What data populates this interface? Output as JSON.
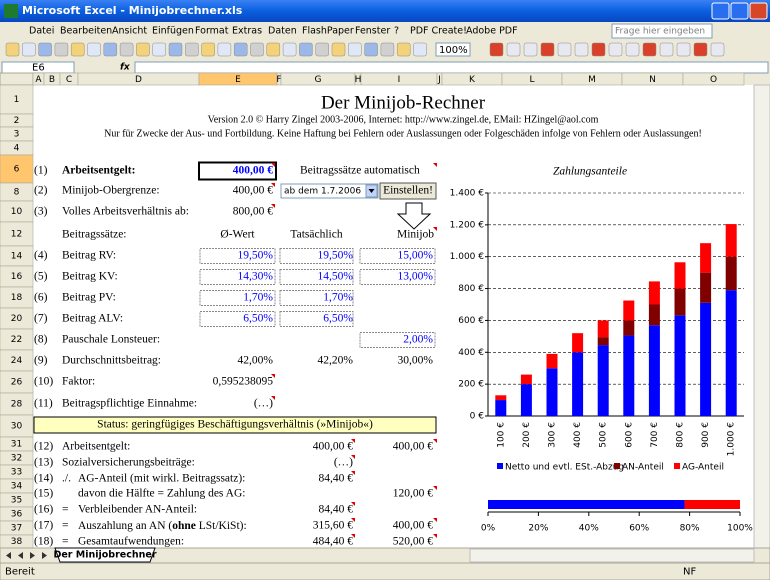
{
  "window": {
    "title": "Microsoft Excel - Minijobrechner.xls"
  },
  "menu": [
    "Datei",
    "Bearbeiten",
    "Ansicht",
    "Einfügen",
    "Format",
    "Extras",
    "Daten",
    "FlashPaper",
    "Fenster",
    "?",
    "PDF Create!",
    "Adobe PDF"
  ],
  "help_box": "Frage hier eingeben",
  "toolbar": {
    "zoom": "100%"
  },
  "formula_bar": {
    "name_box": "E6",
    "fx": "fx"
  },
  "columns": [
    "A",
    "B",
    "C",
    "D",
    "E",
    "F",
    "G",
    "H",
    "I",
    "J",
    "K",
    "L",
    "M",
    "N",
    "O"
  ],
  "rows": [
    "1",
    "2",
    "3",
    "4",
    "6",
    "8",
    "10",
    "12",
    "14",
    "16",
    "18",
    "20",
    "22",
    "24",
    "26",
    "28",
    "30",
    "31",
    "32",
    "33",
    "34",
    "35",
    "36",
    "37",
    "38"
  ],
  "sheet": {
    "title": "Der Minijob-Rechner",
    "version": "Version 2.0 © Harry Zingel 2003-2006, Internet: http://www.zingel.de, EMail: HZingel@aol.com",
    "disclaimer": "Nur für Zwecke der Aus- und Fortbildung. Keine Haftung bei Fehlern oder Auslassungen oder Folgeschäden infolge von Fehlern oder Auslassungen!",
    "auto_rates": "Beitragssätze automatisch",
    "dropdown": "ab dem 1.7.2006",
    "button": "Einstellen!",
    "status": "Status: geringfügiges Beschäftigungsverhältnis (»Minijob«)",
    "lines": [
      {
        "no": "(1)",
        "label": "Arbeitsentgelt:",
        "e": "400,00 €"
      },
      {
        "no": "(2)",
        "label": "Minijob-Obergrenze:",
        "e": "400,00 €"
      },
      {
        "no": "(3)",
        "label": "Volles Arbeitsverhältnis ab:",
        "e": "800,00 €"
      },
      {
        "label": "Beitragssätze:",
        "e": "Ø-Wert",
        "g": "Tatsächlich",
        "i": "Minijob"
      },
      {
        "no": "(4)",
        "label": "Beitrag RV:",
        "e": "19,50%",
        "g": "19,50%",
        "i": "15,00%"
      },
      {
        "no": "(5)",
        "label": "Beitrag KV:",
        "e": "14,30%",
        "g": "14,50%",
        "i": "13,00%"
      },
      {
        "no": "(6)",
        "label": "Beitrag PV:",
        "e": "1,70%",
        "g": "1,70%"
      },
      {
        "no": "(7)",
        "label": "Beitrag ALV:",
        "e": "6,50%",
        "g": "6,50%"
      },
      {
        "no": "(8)",
        "label": "Pauschale Lonsteuer:",
        "i": "2,00%"
      },
      {
        "no": "(9)",
        "label": "Durchschnittsbeitrag:",
        "e": "42,00%",
        "g": "42,20%",
        "i": "30,00%"
      },
      {
        "no": "(10)",
        "label": "Faktor:",
        "e": "0,595238095"
      },
      {
        "no": "(11)",
        "label": "Beitragspflichtige Einnahme:",
        "e": "(…)"
      },
      {
        "no": "(12)",
        "label": "Arbeitsentgelt:",
        "g": "400,00 €",
        "i": "400,00 €"
      },
      {
        "no": "(13)",
        "label": "Sozialversicherungsbeiträge:",
        "g": "(…)"
      },
      {
        "no": "(14)",
        "op": "./.",
        "label": "AG-Anteil (mit wirkl. Beitragssatz):",
        "g": "84,40 €"
      },
      {
        "no": "(15)",
        "label": "davon die Hälfte = Zahlung des AG:",
        "i": "120,00 €"
      },
      {
        "no": "(16)",
        "op": "=",
        "label": "Verbleibender AN-Anteil:",
        "g": "84,40 €"
      },
      {
        "no": "(17)",
        "op": "=",
        "label": [
          "Auszahlung an AN (",
          "ohne",
          " LSt/KiSt):"
        ],
        "g": "315,60 €",
        "i": "400,00 €"
      },
      {
        "no": "(18)",
        "op": "=",
        "label": "Gesamtaufwendungen:",
        "g": "484,40 €",
        "i": "520,00 €"
      }
    ]
  },
  "chart_data": [
    {
      "type": "bar",
      "stacked": true,
      "title": "Zahlungsanteile",
      "categories": [
        "100 €",
        "200 €",
        "300 €",
        "400 €",
        "500 €",
        "600 €",
        "700 €",
        "800 €",
        "900 €",
        "1.000 €"
      ],
      "series": [
        {
          "name": "Netto und evtl. ESt.-Abzug",
          "color": "#0000ff",
          "values": [
            100,
            200,
            300,
            400,
            445,
            505,
            570,
            632,
            711,
            790
          ]
        },
        {
          "name": "AN-Anteil",
          "color": "#800000",
          "values": [
            0,
            0,
            0,
            0,
            50,
            95,
            130,
            168,
            189,
            210
          ]
        },
        {
          "name": "AG-Anteil",
          "color": "#ff0000",
          "values": [
            30,
            60,
            90,
            120,
            105,
            125,
            145,
            165,
            185,
            205
          ]
        }
      ],
      "ylim": [
        0,
        1400
      ],
      "yticks": [
        {
          "value": 0,
          "label": "0 €"
        },
        {
          "value": 200,
          "label": "200 €"
        },
        {
          "value": 400,
          "label": "400 €"
        },
        {
          "value": 600,
          "label": "600 €"
        },
        {
          "value": 800,
          "label": "800 €"
        },
        {
          "value": 1000,
          "label": "1.000 €"
        },
        {
          "value": 1200,
          "label": "1.200 €"
        },
        {
          "value": 1400,
          "label": "1.400 €"
        }
      ],
      "grid": true,
      "legend": "bottom"
    },
    {
      "type": "bar",
      "orientation": "horizontal",
      "stacked": true,
      "series": [
        {
          "color": "#0000ff",
          "values": [
            78
          ]
        },
        {
          "color": "#ff0000",
          "values": [
            22
          ]
        }
      ],
      "xlim": [
        0,
        100
      ],
      "xticks": [
        {
          "value": 0,
          "label": "0%"
        },
        {
          "value": 20,
          "label": "20%"
        },
        {
          "value": 40,
          "label": "40%"
        },
        {
          "value": 60,
          "label": "60%"
        },
        {
          "value": 80,
          "label": "80%"
        },
        {
          "value": 100,
          "label": "100%"
        }
      ]
    }
  ],
  "sheet_tab": "Der Minijobrechner",
  "status_bar": {
    "left": "Bereit",
    "right": "NF"
  }
}
